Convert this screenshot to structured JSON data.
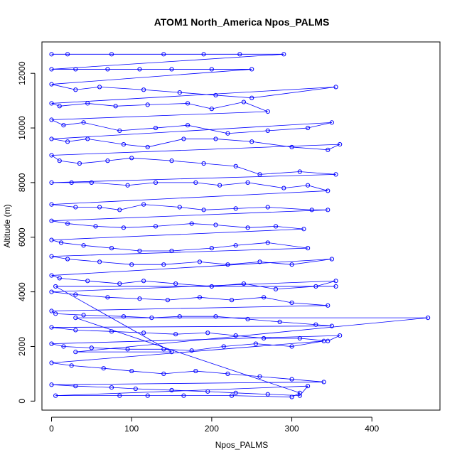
{
  "chart_data": {
    "type": "scatter",
    "title": "ATOM1 North_America Npos_PALMS",
    "xlabel": "Npos_PALMS",
    "ylabel": "Altitude (m)",
    "xlim": [
      -12,
      485
    ],
    "ylim": [
      -330,
      13150
    ],
    "x_ticks": [
      0,
      100,
      200,
      300,
      400
    ],
    "y_ticks": [
      0,
      2000,
      4000,
      6000,
      8000,
      10000,
      12000
    ],
    "x_tick_labels": [
      "0",
      "100",
      "200",
      "300",
      "400"
    ],
    "y_tick_labels": [
      "0",
      "2000",
      "4000",
      "6000",
      "8000",
      "10000",
      "12000"
    ],
    "series": [
      {
        "style": "points-and-lines",
        "color": "#0000ff",
        "points": [
          [
            0,
            12700
          ],
          [
            20,
            12700
          ],
          [
            75,
            12700
          ],
          [
            140,
            12700
          ],
          [
            190,
            12700
          ],
          [
            235,
            12700
          ],
          [
            290,
            12700
          ],
          [
            0,
            12150
          ],
          [
            30,
            12150
          ],
          [
            70,
            12150
          ],
          [
            110,
            12150
          ],
          [
            150,
            12150
          ],
          [
            200,
            12150
          ],
          [
            250,
            12150
          ],
          [
            0,
            11600
          ],
          [
            30,
            11400
          ],
          [
            60,
            11500
          ],
          [
            115,
            11400
          ],
          [
            160,
            11300
          ],
          [
            205,
            11200
          ],
          [
            250,
            11100
          ],
          [
            355,
            11500
          ],
          [
            0,
            10900
          ],
          [
            10,
            10800
          ],
          [
            45,
            10900
          ],
          [
            80,
            10800
          ],
          [
            120,
            10850
          ],
          [
            170,
            10900
          ],
          [
            200,
            10700
          ],
          [
            240,
            10950
          ],
          [
            270,
            10600
          ],
          [
            0,
            10300
          ],
          [
            15,
            10100
          ],
          [
            40,
            10200
          ],
          [
            85,
            9900
          ],
          [
            130,
            10000
          ],
          [
            170,
            10100
          ],
          [
            220,
            9800
          ],
          [
            270,
            9900
          ],
          [
            320,
            10000
          ],
          [
            350,
            10200
          ],
          [
            0,
            9600
          ],
          [
            20,
            9500
          ],
          [
            45,
            9600
          ],
          [
            90,
            9400
          ],
          [
            120,
            9300
          ],
          [
            165,
            9600
          ],
          [
            205,
            9600
          ],
          [
            250,
            9500
          ],
          [
            300,
            9300
          ],
          [
            345,
            9200
          ],
          [
            360,
            9400
          ],
          [
            0,
            9000
          ],
          [
            10,
            8800
          ],
          [
            35,
            8700
          ],
          [
            70,
            8800
          ],
          [
            100,
            8900
          ],
          [
            150,
            8800
          ],
          [
            190,
            8700
          ],
          [
            230,
            8600
          ],
          [
            260,
            8300
          ],
          [
            310,
            8400
          ],
          [
            355,
            8300
          ],
          [
            0,
            8000
          ],
          [
            25,
            8000
          ],
          [
            50,
            8000
          ],
          [
            95,
            7900
          ],
          [
            130,
            8000
          ],
          [
            180,
            8000
          ],
          [
            210,
            7900
          ],
          [
            245,
            8000
          ],
          [
            290,
            7800
          ],
          [
            320,
            7900
          ],
          [
            345,
            7700
          ],
          [
            0,
            7200
          ],
          [
            30,
            7100
          ],
          [
            60,
            7100
          ],
          [
            85,
            7000
          ],
          [
            115,
            7200
          ],
          [
            160,
            7100
          ],
          [
            190,
            7000
          ],
          [
            230,
            7050
          ],
          [
            270,
            7100
          ],
          [
            325,
            7000
          ],
          [
            345,
            7000
          ],
          [
            0,
            6600
          ],
          [
            20,
            6500
          ],
          [
            55,
            6400
          ],
          [
            90,
            6350
          ],
          [
            130,
            6400
          ],
          [
            175,
            6500
          ],
          [
            205,
            6450
          ],
          [
            245,
            6350
          ],
          [
            280,
            6400
          ],
          [
            315,
            6300
          ],
          [
            0,
            5900
          ],
          [
            12,
            5800
          ],
          [
            40,
            5700
          ],
          [
            75,
            5600
          ],
          [
            110,
            5500
          ],
          [
            150,
            5500
          ],
          [
            200,
            5600
          ],
          [
            230,
            5700
          ],
          [
            270,
            5800
          ],
          [
            320,
            5600
          ],
          [
            0,
            5300
          ],
          [
            20,
            5200
          ],
          [
            60,
            5100
          ],
          [
            100,
            5000
          ],
          [
            140,
            5000
          ],
          [
            185,
            5100
          ],
          [
            220,
            5000
          ],
          [
            260,
            5100
          ],
          [
            300,
            5000
          ],
          [
            350,
            5200
          ],
          [
            0,
            4600
          ],
          [
            10,
            4500
          ],
          [
            45,
            4400
          ],
          [
            85,
            4300
          ],
          [
            115,
            4400
          ],
          [
            155,
            4300
          ],
          [
            200,
            4200
          ],
          [
            240,
            4300
          ],
          [
            280,
            4100
          ],
          [
            330,
            4200
          ],
          [
            355,
            4400
          ],
          [
            0,
            4000
          ],
          [
            30,
            3900
          ],
          [
            70,
            3800
          ],
          [
            110,
            3750
          ],
          [
            145,
            3700
          ],
          [
            185,
            3800
          ],
          [
            225,
            3700
          ],
          [
            265,
            3800
          ],
          [
            300,
            3600
          ],
          [
            345,
            3500
          ],
          [
            0,
            3300
          ],
          [
            5,
            3200
          ],
          [
            40,
            3150
          ],
          [
            90,
            3100
          ],
          [
            125,
            3050
          ],
          [
            160,
            3100
          ],
          [
            205,
            3100
          ],
          [
            245,
            3000
          ],
          [
            285,
            2900
          ],
          [
            330,
            2800
          ],
          [
            350,
            2750
          ],
          [
            0,
            2700
          ],
          [
            30,
            2600
          ],
          [
            75,
            2550
          ],
          [
            115,
            2500
          ],
          [
            155,
            2450
          ],
          [
            195,
            2500
          ],
          [
            230,
            2400
          ],
          [
            265,
            2300
          ],
          [
            310,
            2300
          ],
          [
            345,
            2200
          ],
          [
            360,
            2400
          ],
          [
            0,
            2100
          ],
          [
            15,
            2000
          ],
          [
            50,
            1950
          ],
          [
            95,
            1900
          ],
          [
            140,
            1900
          ],
          [
            175,
            1850
          ],
          [
            215,
            2000
          ],
          [
            255,
            2100
          ],
          [
            300,
            2000
          ],
          [
            340,
            2200
          ],
          [
            0,
            1400
          ],
          [
            25,
            1300
          ],
          [
            65,
            1200
          ],
          [
            100,
            1100
          ],
          [
            140,
            1000
          ],
          [
            180,
            1100
          ],
          [
            220,
            1000
          ],
          [
            260,
            900
          ],
          [
            300,
            800
          ],
          [
            340,
            700
          ],
          [
            0,
            600
          ],
          [
            30,
            550
          ],
          [
            75,
            500
          ],
          [
            105,
            450
          ],
          [
            150,
            400
          ],
          [
            195,
            350
          ],
          [
            230,
            300
          ],
          [
            270,
            250
          ],
          [
            310,
            200
          ],
          [
            320,
            550
          ],
          [
            5,
            200
          ],
          [
            85,
            200
          ],
          [
            120,
            200
          ],
          [
            165,
            200
          ],
          [
            225,
            200
          ],
          [
            300,
            150
          ],
          [
            310,
            300
          ],
          [
            30,
            3050
          ],
          [
            470,
            3050
          ],
          [
            30,
            1800
          ],
          [
            150,
            1800
          ],
          [
            5,
            4200
          ],
          [
            355,
            4200
          ]
        ]
      }
    ]
  }
}
